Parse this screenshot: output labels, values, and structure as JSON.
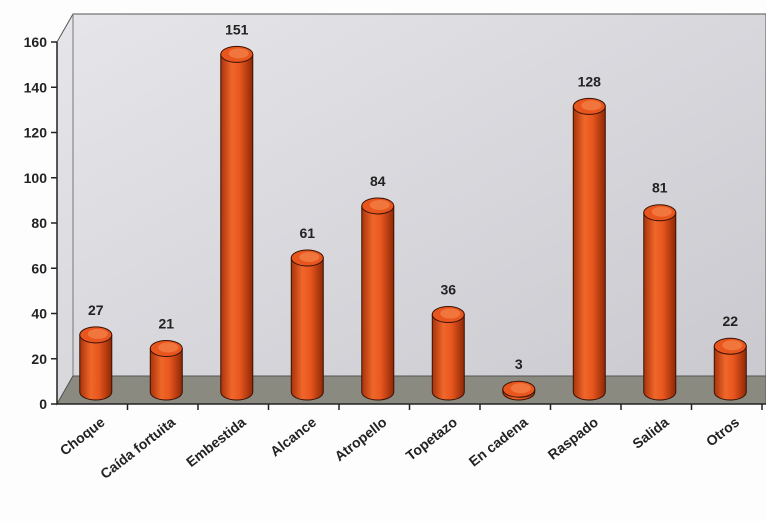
{
  "chart_data": {
    "type": "bar",
    "title": "",
    "xlabel": "",
    "ylabel": "",
    "categories": [
      "Choque",
      "Caída fortuita",
      "Embestida",
      "Alcance",
      "Atropello",
      "Topetazo",
      "En cadena",
      "Raspado",
      "Salida",
      "Otros"
    ],
    "values": [
      27,
      21,
      151,
      61,
      84,
      36,
      3,
      128,
      81,
      22
    ],
    "ylim": [
      0,
      160
    ],
    "yticks": [
      0,
      20,
      40,
      60,
      80,
      100,
      120,
      140,
      160
    ],
    "grid": false,
    "legend": "none",
    "style": "3d-cylinder",
    "colors": {
      "bar": "#e8561e",
      "bar_dark": "#9c2e08",
      "bar_light": "#f7925a",
      "back_wall": "#d2d2d8",
      "floor": "#8a8a80"
    }
  }
}
